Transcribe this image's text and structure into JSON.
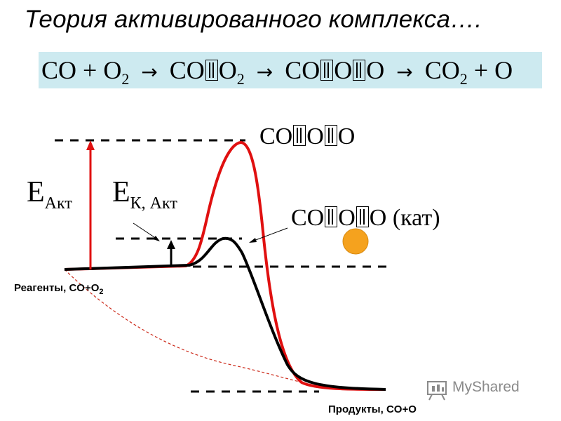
{
  "title": "Теория активированного комплекса….",
  "equation": {
    "reactants": "CO + O",
    "reactants_sub": "2",
    "arrow": "→",
    "step1_a": "CO",
    "step1_b": "O",
    "step1_sub": "2",
    "step2_a": "CO",
    "step2_b": "O",
    "step2_c": "O",
    "products": "CO",
    "products_sub": "2",
    "products_tail": " + O"
  },
  "labels": {
    "top_complex": [
      "CO",
      "O",
      "O"
    ],
    "cat_complex": [
      "CO",
      "O",
      "O"
    ],
    "cat_suffix": " (кат)",
    "e_akt_main": "E",
    "e_akt_sub": "Акт",
    "e_k_main": "E",
    "e_k_sub": "К, Акт",
    "reagents": "Реагенты, CO+O",
    "reagents_sub": "2",
    "products": "Продукты, CO+O"
  },
  "watermark": "MyShared",
  "colors": {
    "uncatalyzed": "#e01010",
    "catalyzed": "#000000",
    "dashed_path": "#cc2a1a",
    "catalyst": "#f5a21e",
    "equation_bg": "#cdeaf0",
    "watermark": "#8a8a8a"
  }
}
